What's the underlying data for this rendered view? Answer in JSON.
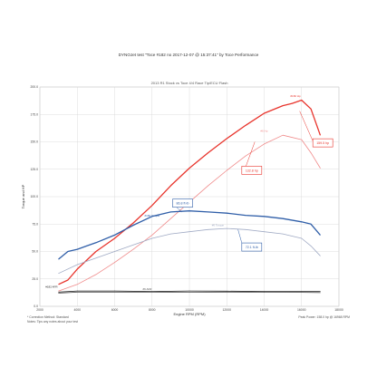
{
  "chart_data": {
    "type": "line",
    "title": "DYNOJet test \"Toce #182 no 2017-12-07 @ 15:37:41\" by Toce Performance",
    "subtitle": "2013 R1 Stock vs Toce 4/4 Race Tip/ECU Flash",
    "xlabel": "Engine RPM (RPM)",
    "ylabel": "Torque and HP",
    "xlim": [
      2000,
      18000
    ],
    "ylim": [
      0,
      200
    ],
    "x_ticks": [
      "2000",
      "4000",
      "6000",
      "8000",
      "10000",
      "12000",
      "14000",
      "16000",
      "18000"
    ],
    "y_ticks": [
      "0.0",
      "25.0",
      "50.0",
      "75.0",
      "100.0",
      "125.0",
      "150.0",
      "175.0",
      "200.0"
    ],
    "grid": true,
    "series": [
      {
        "name": "#182 Hp",
        "color": "#e8342c",
        "x": [
          3000,
          3500,
          4000,
          5000,
          6000,
          7000,
          8000,
          9000,
          10000,
          11000,
          12000,
          13000,
          14000,
          15000,
          15500,
          16000,
          16500,
          17000
        ],
        "values": [
          20,
          24,
          34,
          50,
          62,
          76,
          92,
          110,
          126,
          140,
          153,
          165,
          176,
          183,
          185,
          188,
          180,
          156
        ]
      },
      {
        "name": "#6 Hp",
        "color": "#f08a8a",
        "x": [
          3000,
          4000,
          5000,
          6000,
          7000,
          8000,
          9000,
          10000,
          11000,
          12000,
          13000,
          14000,
          15000,
          16000,
          16500,
          17000
        ],
        "values": [
          14,
          20,
          29,
          40,
          52,
          65,
          80,
          95,
          110,
          124,
          137,
          148,
          156,
          152,
          140,
          126
        ]
      },
      {
        "name": "#182 Torque",
        "color": "#2f5ea8",
        "x": [
          3000,
          3500,
          4000,
          4500,
          5000,
          6000,
          7000,
          8000,
          9000,
          10000,
          11000,
          12000,
          13000,
          14000,
          15000,
          16000,
          16500,
          17000
        ],
        "values": [
          43,
          50,
          52,
          55,
          58,
          65,
          74,
          82,
          86,
          87,
          86,
          85,
          83,
          82,
          80,
          77,
          75,
          65
        ]
      },
      {
        "name": "#6 Torque",
        "color": "#a0aac4",
        "x": [
          3000,
          4000,
          5000,
          6000,
          7000,
          8000,
          9000,
          10000,
          11000,
          12000,
          13000,
          14000,
          15000,
          16000,
          16500,
          17000
        ],
        "values": [
          30,
          38,
          44,
          50,
          56,
          62,
          66,
          68,
          70,
          71,
          70,
          68,
          66,
          62,
          55,
          46
        ]
      },
      {
        "name": "#182 AFR",
        "color": "#222222",
        "x": [
          3000,
          4000,
          6000,
          8000,
          10000,
          12000,
          14000,
          16000,
          17000
        ],
        "values": [
          13,
          14,
          14,
          13.5,
          14,
          13.8,
          13.5,
          13.5,
          13.5
        ]
      },
      {
        "name": "#6 AFR",
        "color": "#555555",
        "x": [
          3000,
          4000,
          6000,
          8000,
          10000,
          12000,
          14000,
          16000,
          17000
        ],
        "values": [
          12,
          13,
          13,
          13,
          12.8,
          13,
          12.8,
          12.7,
          12.5
        ]
      }
    ],
    "annotations": [
      {
        "text": "159.5 hp",
        "x": 16700,
        "y": 147,
        "color": "#e8342c"
      },
      {
        "text": "132.8 hp",
        "x": 12900,
        "y": 122,
        "color": "#e8342c"
      },
      {
        "text": "86.8 ft-lb",
        "x": 9200,
        "y": 92,
        "color": "#2f5ea8"
      },
      {
        "text": "72.1 ft-lb",
        "x": 12900,
        "y": 52,
        "color": "#2f5ea8"
      }
    ]
  },
  "notes": {
    "correction": "* Correction Method: Standard",
    "smoothing": "Notes: Tips any notes about your test",
    "peak_power": "Peak Power: 158.0 hp @ 16968 RPM"
  }
}
